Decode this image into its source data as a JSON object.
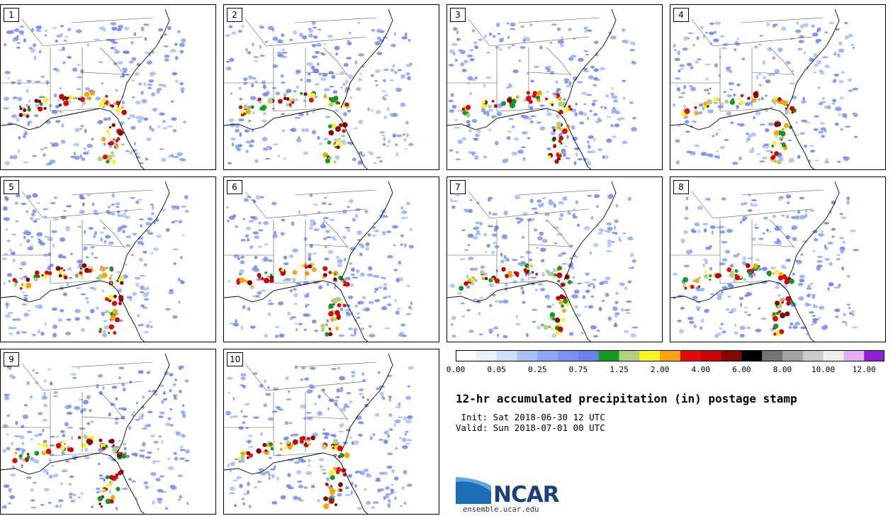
{
  "panels": [
    {
      "label": "1"
    },
    {
      "label": "2"
    },
    {
      "label": "3"
    },
    {
      "label": "4"
    },
    {
      "label": "5"
    },
    {
      "label": "6"
    },
    {
      "label": "7"
    },
    {
      "label": "8"
    },
    {
      "label": "9"
    },
    {
      "label": "10"
    }
  ],
  "colorbar": {
    "colors": [
      "#ffffff",
      "#e8f2fd",
      "#cfdffb",
      "#a8c2f6",
      "#8aa8f4",
      "#7a92f0",
      "#6a80ec",
      "#119922",
      "#b1d27c",
      "#fcf324",
      "#fba40b",
      "#e40808",
      "#c70505",
      "#850404",
      "#000000",
      "#747474",
      "#a3a3a3",
      "#cbcbcb",
      "#efefef",
      "#e0b0f0",
      "#9020d8"
    ],
    "labels": [
      "0.00",
      "0.05",
      "0.25",
      "0.75",
      "1.25",
      "2.00",
      "4.00",
      "6.00",
      "8.00",
      "10.00",
      "12.00"
    ]
  },
  "title": "12-hr accumulated precipitation (in) postage stamp",
  "init_line": " Init: Sat 2018-06-30 12 UTC",
  "valid_line": "Valid: Sun 2018-07-01 00 UTC",
  "logo": {
    "text": "NCAR",
    "url": "ensemble.ucar.edu"
  }
}
